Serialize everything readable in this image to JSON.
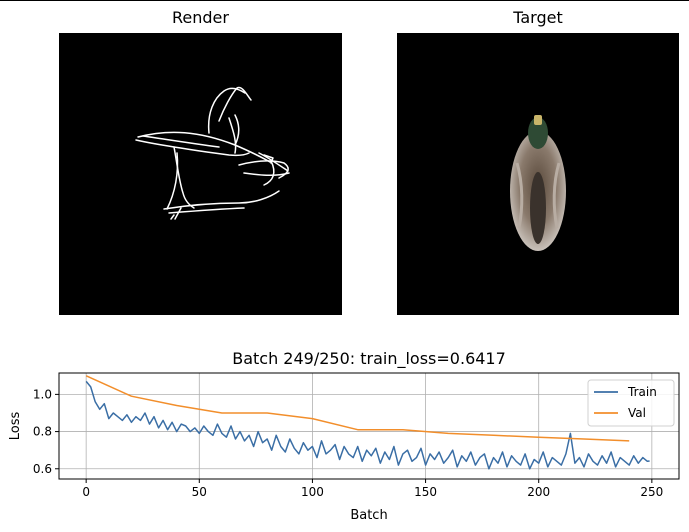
{
  "panels": {
    "render_title": "Render",
    "target_title": "Target"
  },
  "chart_data": {
    "type": "line",
    "title": "Batch 249/250: train_loss=0.6417",
    "xlabel": "Batch",
    "ylabel": "Loss",
    "xlim": [
      -12,
      262
    ],
    "ylim": [
      0.545,
      1.115
    ],
    "xticks": [
      0,
      50,
      100,
      150,
      200,
      250
    ],
    "yticks": [
      0.6,
      0.8,
      1.0
    ],
    "xtick_labels": [
      "0",
      "50",
      "100",
      "150",
      "200",
      "250"
    ],
    "ytick_labels": [
      "0.6",
      "0.8",
      "1.0"
    ],
    "grid": true,
    "legend_position": "top-right",
    "series": [
      {
        "name": "Train",
        "color": "#3a6ea5",
        "x": [
          0,
          2,
          4,
          6,
          8,
          10,
          12,
          14,
          16,
          18,
          20,
          22,
          24,
          26,
          28,
          30,
          32,
          34,
          36,
          38,
          40,
          42,
          44,
          46,
          48,
          50,
          52,
          54,
          56,
          58,
          60,
          62,
          64,
          66,
          68,
          70,
          72,
          74,
          76,
          78,
          80,
          82,
          84,
          86,
          88,
          90,
          92,
          94,
          96,
          98,
          100,
          102,
          104,
          106,
          108,
          110,
          112,
          114,
          116,
          118,
          120,
          122,
          124,
          126,
          128,
          130,
          132,
          134,
          136,
          138,
          140,
          142,
          144,
          146,
          148,
          150,
          152,
          154,
          156,
          158,
          160,
          162,
          164,
          166,
          168,
          170,
          172,
          174,
          176,
          178,
          180,
          182,
          184,
          186,
          188,
          190,
          192,
          194,
          196,
          198,
          200,
          202,
          204,
          206,
          208,
          210,
          212,
          214,
          216,
          218,
          220,
          222,
          224,
          226,
          228,
          230,
          232,
          234,
          236,
          238,
          240,
          242,
          244,
          246,
          248,
          249
        ],
        "values": [
          1.07,
          1.04,
          0.96,
          0.92,
          0.95,
          0.87,
          0.9,
          0.88,
          0.86,
          0.89,
          0.85,
          0.88,
          0.86,
          0.9,
          0.84,
          0.88,
          0.82,
          0.86,
          0.81,
          0.85,
          0.8,
          0.84,
          0.83,
          0.8,
          0.82,
          0.79,
          0.83,
          0.8,
          0.78,
          0.84,
          0.79,
          0.77,
          0.83,
          0.76,
          0.8,
          0.75,
          0.78,
          0.72,
          0.8,
          0.74,
          0.76,
          0.7,
          0.78,
          0.72,
          0.69,
          0.76,
          0.71,
          0.68,
          0.74,
          0.7,
          0.72,
          0.66,
          0.75,
          0.68,
          0.7,
          0.73,
          0.65,
          0.72,
          0.68,
          0.66,
          0.72,
          0.64,
          0.7,
          0.67,
          0.71,
          0.63,
          0.69,
          0.65,
          0.72,
          0.62,
          0.68,
          0.7,
          0.64,
          0.66,
          0.71,
          0.62,
          0.68,
          0.65,
          0.69,
          0.63,
          0.66,
          0.7,
          0.61,
          0.67,
          0.64,
          0.69,
          0.62,
          0.66,
          0.68,
          0.6,
          0.66,
          0.63,
          0.69,
          0.61,
          0.67,
          0.64,
          0.62,
          0.68,
          0.6,
          0.65,
          0.63,
          0.69,
          0.61,
          0.66,
          0.64,
          0.62,
          0.68,
          0.79,
          0.63,
          0.66,
          0.61,
          0.68,
          0.64,
          0.62,
          0.67,
          0.63,
          0.69,
          0.61,
          0.66,
          0.64,
          0.62,
          0.67,
          0.63,
          0.66,
          0.64,
          0.6417
        ]
      },
      {
        "name": "Val",
        "color": "#f28e2b",
        "x": [
          0,
          20,
          40,
          60,
          80,
          100,
          120,
          140,
          160,
          180,
          200,
          220,
          240
        ],
        "values": [
          1.1,
          0.99,
          0.94,
          0.9,
          0.9,
          0.87,
          0.81,
          0.81,
          0.79,
          0.78,
          0.77,
          0.76,
          0.75
        ]
      }
    ]
  }
}
